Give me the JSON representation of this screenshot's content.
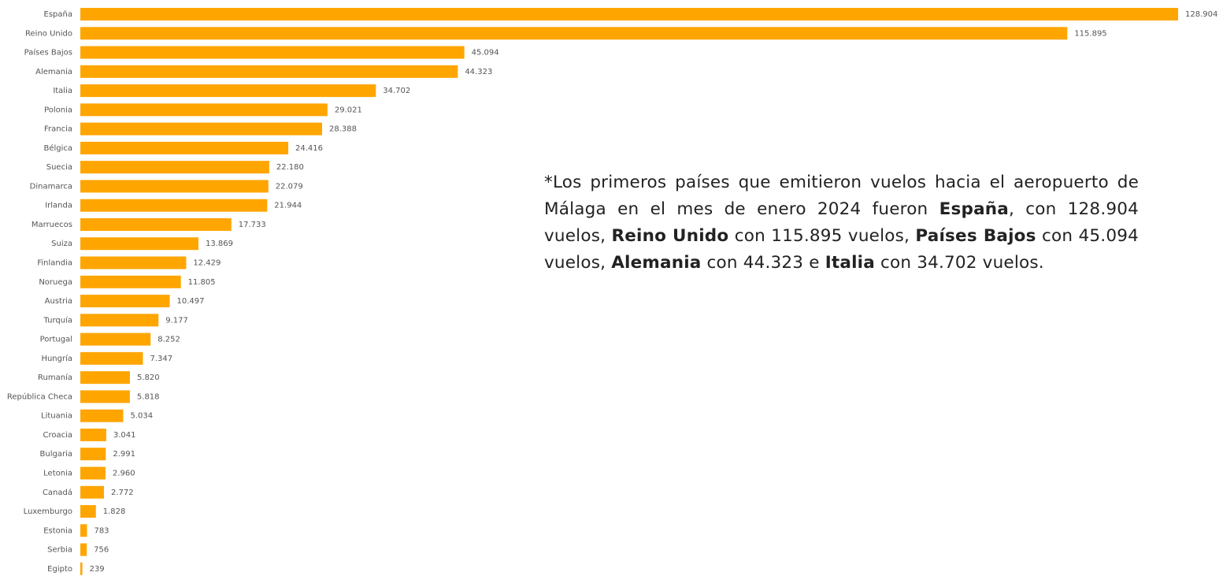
{
  "chart_data": {
    "type": "bar",
    "orientation": "horizontal",
    "color": "#ffa500",
    "categories": [
      "España",
      "Reino Unido",
      "Países Bajos",
      "Alemania",
      "Italia",
      "Polonia",
      "Francia",
      "Bélgica",
      "Suecia",
      "Dinamarca",
      "Irlanda",
      "Marruecos",
      "Suiza",
      "Finlandia",
      "Noruega",
      "Austria",
      "Turquía",
      "Portugal",
      "Hungría",
      "Rumanía",
      "República Checa",
      "Lituania",
      "Croacia",
      "Bulgaria",
      "Letonia",
      "Canadá",
      "Luxemburgo",
      "Estonia",
      "Serbia",
      "Egipto"
    ],
    "values": [
      128904,
      115895,
      45094,
      44323,
      34702,
      29021,
      28388,
      24416,
      22180,
      22079,
      21944,
      17733,
      13869,
      12429,
      11805,
      10497,
      9177,
      8252,
      7347,
      5820,
      5818,
      5034,
      3041,
      2991,
      2960,
      2772,
      1828,
      783,
      756,
      239
    ],
    "value_labels": [
      "128.904",
      "115.895",
      "45.094",
      "44.323",
      "34.702",
      "29.021",
      "28.388",
      "24.416",
      "22.180",
      "22.079",
      "21.944",
      "17.733",
      "13.869",
      "12.429",
      "11.805",
      "10.497",
      "9.177",
      "8.252",
      "7.347",
      "5.820",
      "5.818",
      "5.034",
      "3.041",
      "2.991",
      "2.960",
      "2.772",
      "1.828",
      "783",
      "756",
      "239"
    ],
    "annotation": [
      {
        "text": "*Los primeros países que emitieron vuelos hacia el aeropuerto de Málaga en el mes de enero 2024 fueron ",
        "bold": false
      },
      {
        "text": "España",
        "bold": true
      },
      {
        "text": ", con 128.904 vuelos, ",
        "bold": false
      },
      {
        "text": "Reino Unido",
        "bold": true
      },
      {
        "text": " con 115.895 vuelos, ",
        "bold": false
      },
      {
        "text": "Países Bajos",
        "bold": true
      },
      {
        "text": " con 45.094 vuelos, ",
        "bold": false
      },
      {
        "text": "Alemania",
        "bold": true
      },
      {
        "text": " con 44.323 e ",
        "bold": false
      },
      {
        "text": "Italia",
        "bold": true
      },
      {
        "text": " con 34.702 vuelos.",
        "bold": false
      }
    ]
  }
}
